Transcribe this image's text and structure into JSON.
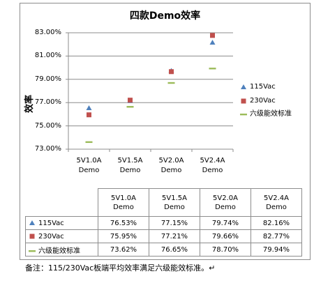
{
  "chart_data": {
    "type": "scatter",
    "title": "四款Demo效率",
    "ylabel": "效率",
    "ylim": [
      73.0,
      83.0
    ],
    "yticks": [
      "73.00%",
      "75.00%",
      "77.00%",
      "79.00%",
      "81.00%",
      "83.00%"
    ],
    "ytick_values": [
      73,
      75,
      77,
      79,
      81,
      83
    ],
    "categories": [
      [
        "5V1.0A",
        "Demo"
      ],
      [
        "5V1.5A",
        "Demo"
      ],
      [
        "5V2.0A",
        "Demo"
      ],
      [
        "5V2.4A",
        "Demo"
      ]
    ],
    "legend_position": "right",
    "grid": "horizontal",
    "series": [
      {
        "name": "115Vac",
        "marker": "triangle",
        "color": "#4f81bd",
        "values": [
          76.53,
          77.15,
          79.74,
          82.16
        ],
        "labels": [
          "76.53%",
          "77.15%",
          "79.74%",
          "82.16%"
        ]
      },
      {
        "name": "230Vac",
        "marker": "square",
        "color": "#c0504d",
        "values": [
          75.95,
          77.21,
          79.66,
          82.77
        ],
        "labels": [
          "75.95%",
          "77.21%",
          "79.66%",
          "82.77%"
        ]
      },
      {
        "name": "六级能效标准",
        "marker": "dash",
        "color": "#9bbb59",
        "values": [
          73.62,
          76.65,
          78.7,
          79.94
        ],
        "labels": [
          "73.62%",
          "76.65%",
          "78.70%",
          "79.94%"
        ]
      }
    ]
  },
  "footnote": "备注：115/230Vac板端平均效率满足六级能效标准。↵"
}
